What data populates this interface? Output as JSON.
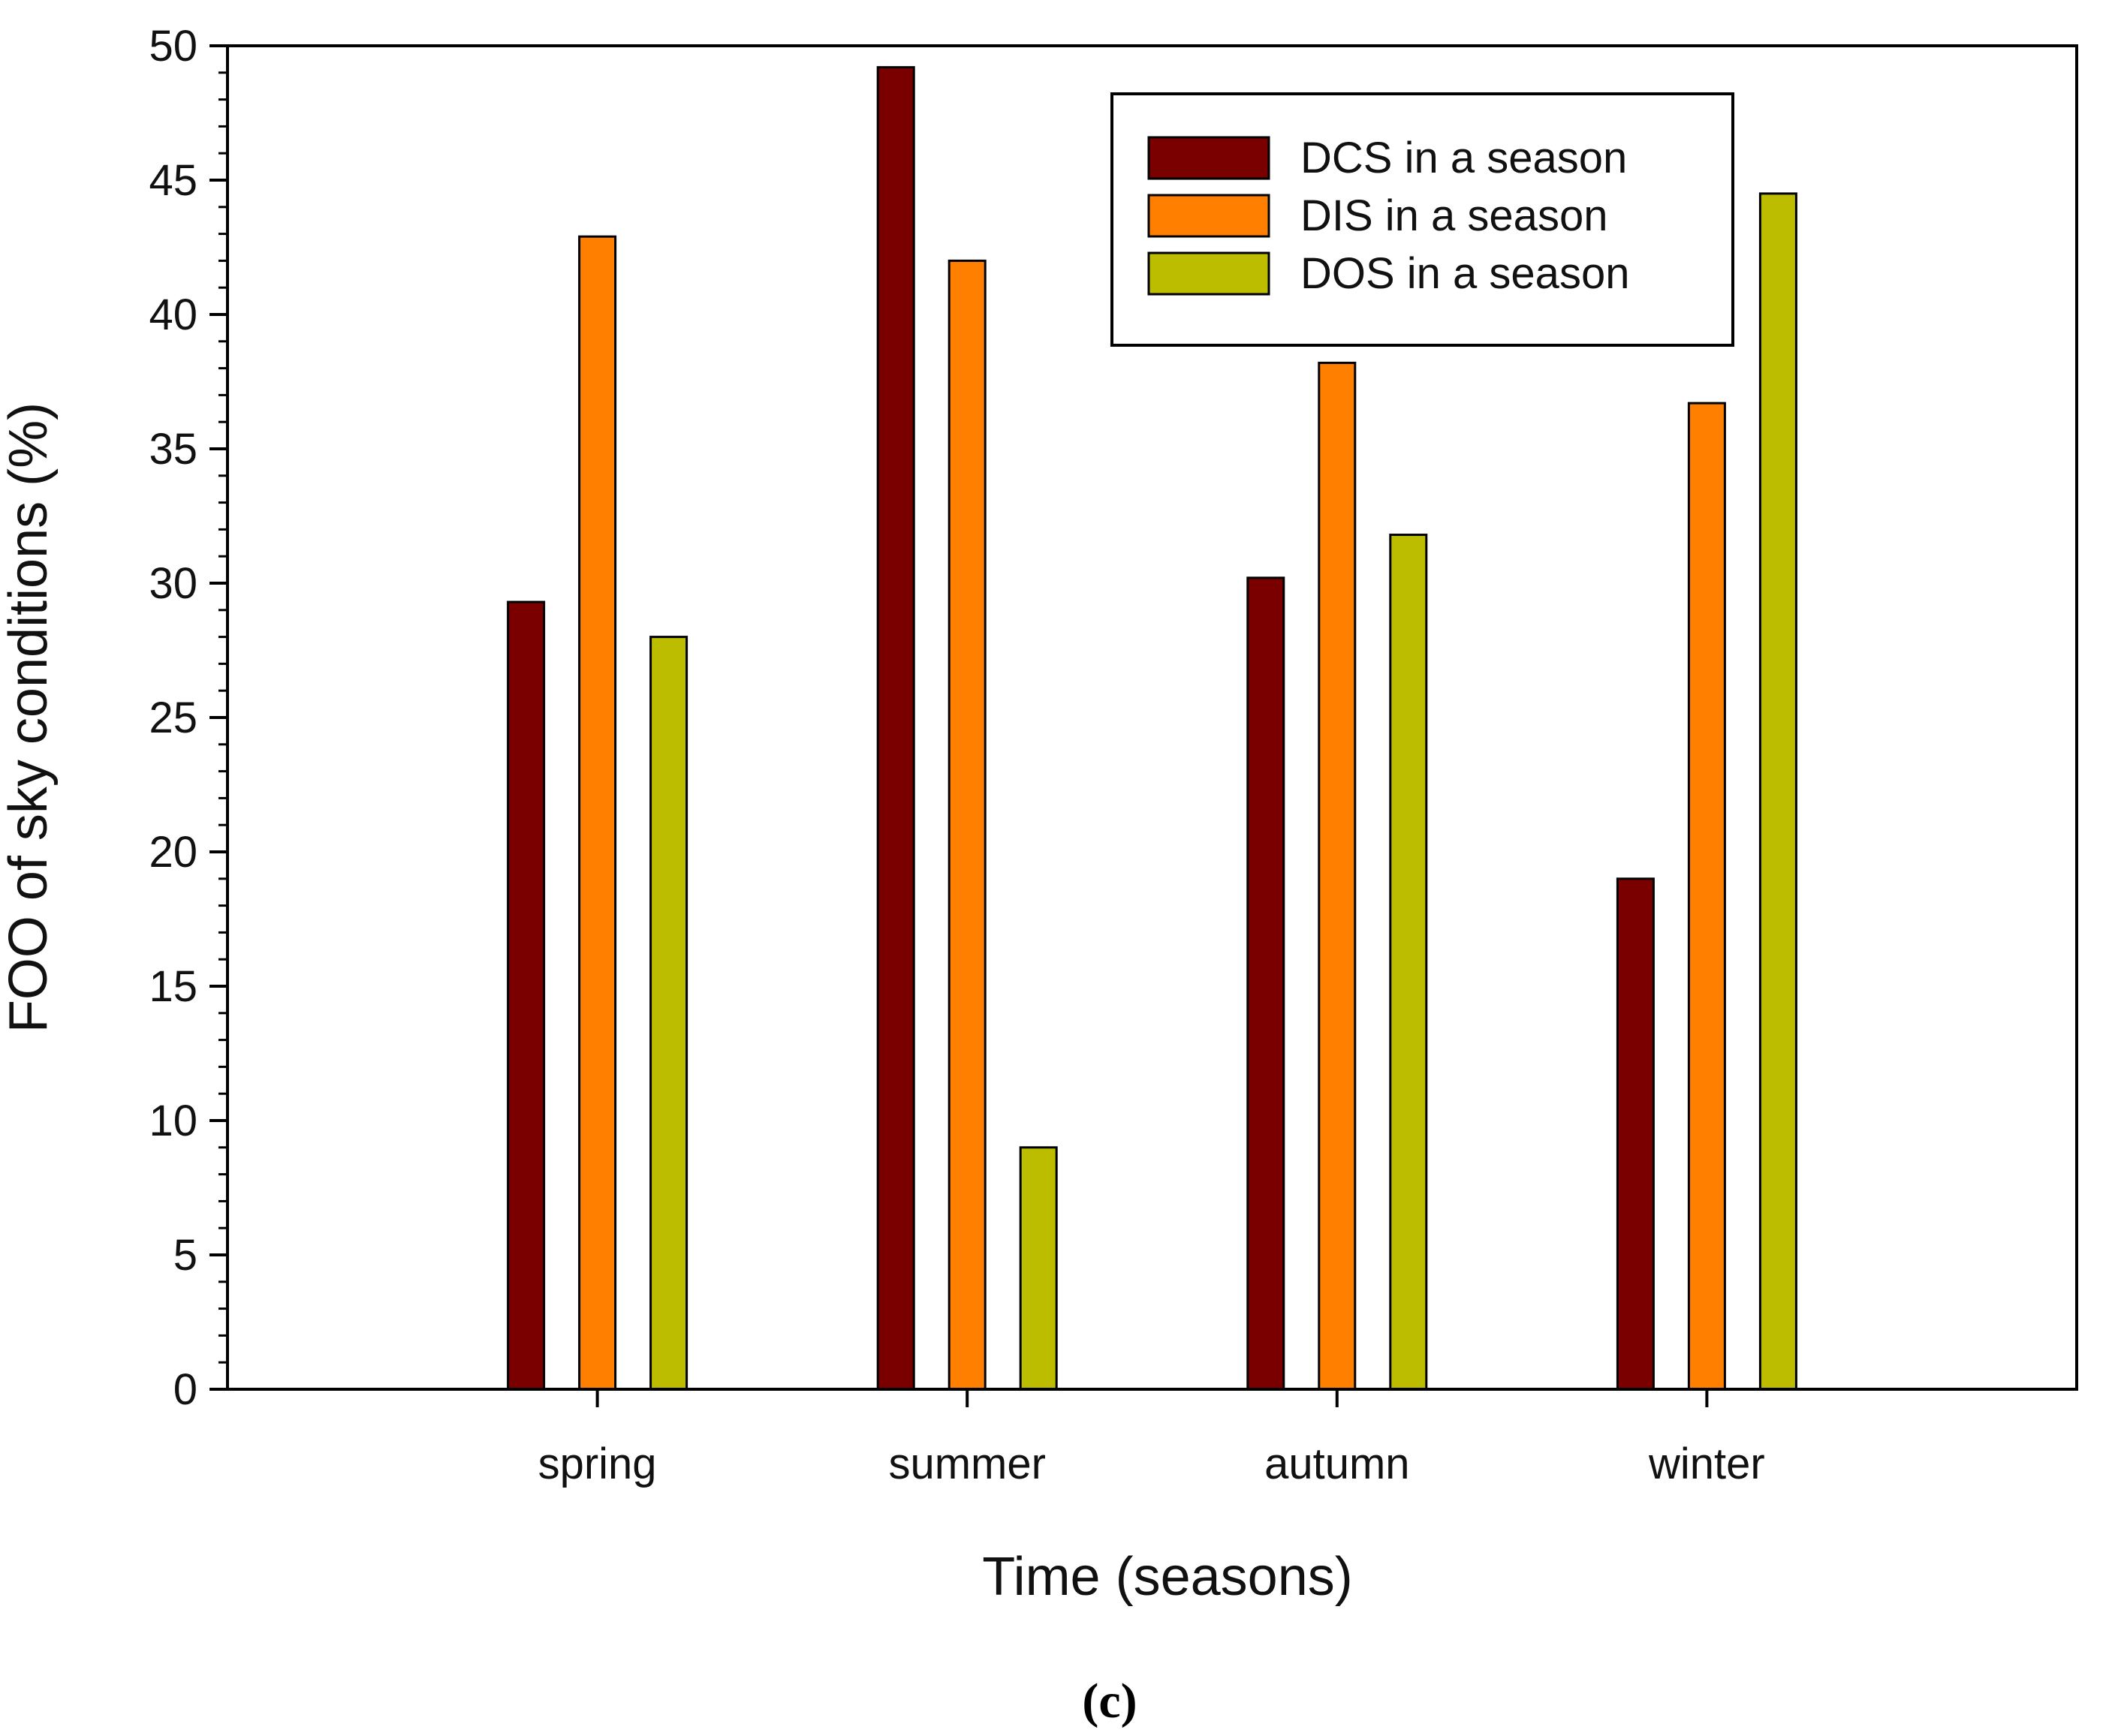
{
  "chart_data": {
    "type": "bar",
    "title": "",
    "xlabel": "Time (seasons)",
    "ylabel": "FOO of sky conditions (%)",
    "ylim": [
      0,
      50
    ],
    "yticks": [
      "0",
      "5",
      "10",
      "15",
      "20",
      "25",
      "30",
      "35",
      "40",
      "45",
      "50"
    ],
    "categories": [
      "spring",
      "summer",
      "autumn",
      "winter"
    ],
    "series": [
      {
        "name": "DCS in a season",
        "color": "#7a0000",
        "values": [
          29.3,
          49.2,
          30.2,
          19.0
        ]
      },
      {
        "name": "DIS in a season",
        "color": "#ff8000",
        "values": [
          42.9,
          42.0,
          38.2,
          36.7
        ]
      },
      {
        "name": "DOS in a season",
        "color": "#bdbd00",
        "values": [
          28.0,
          9.0,
          31.8,
          44.5
        ]
      }
    ],
    "legend_position": "top-right",
    "grid": false
  },
  "panel_label": "(c)"
}
